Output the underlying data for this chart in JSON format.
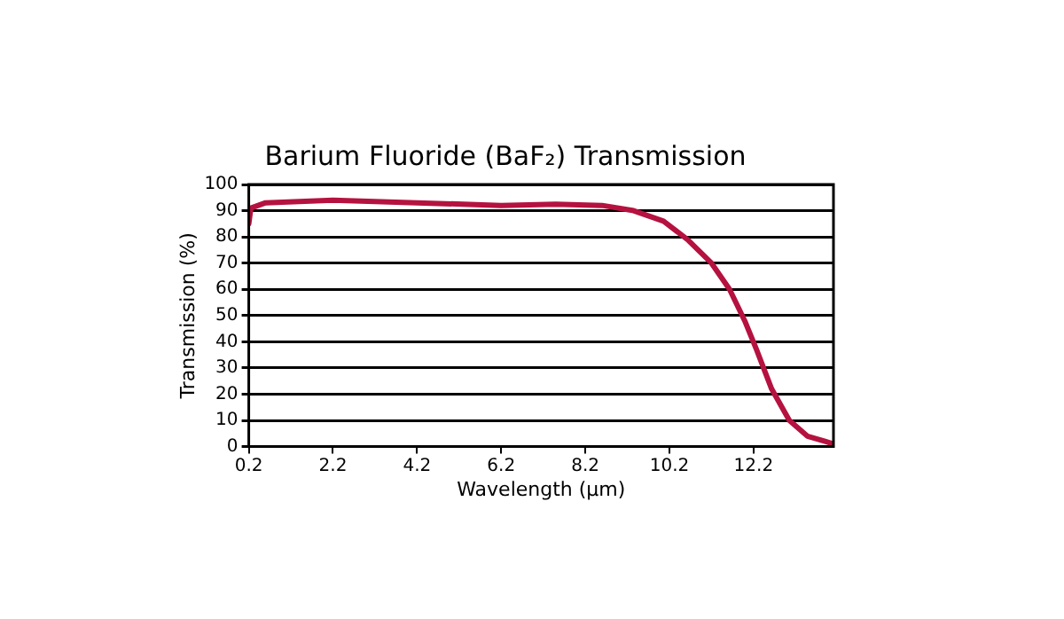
{
  "chart_data": {
    "type": "line",
    "title": "Barium Fluoride (BaF₂) Transmission",
    "xlabel": "Wavelength (µm)",
    "ylabel": "Transmission (%)",
    "series": [
      {
        "color": "#b5123f",
        "x": [
          0.2,
          0.25,
          0.6,
          2.2,
          4.2,
          6.2,
          7.5,
          8.6,
          9.35,
          10.06,
          10.63,
          11.2,
          11.63,
          11.99,
          12.27,
          12.63,
          13.05,
          13.48,
          13.9,
          14.1
        ],
        "values": [
          85,
          91,
          93,
          94,
          93,
          92,
          92.5,
          92,
          90,
          86,
          79,
          70,
          60,
          48,
          37,
          22,
          10,
          4,
          2,
          1
        ]
      }
    ],
    "xlim": [
      0.2,
      14.1
    ],
    "xticks": [
      0.2,
      2.2,
      4.2,
      6.2,
      8.2,
      10.2,
      12.2
    ],
    "ylim": [
      0,
      100
    ],
    "yticks": [
      0,
      10,
      20,
      30,
      40,
      50,
      60,
      70,
      80,
      90,
      100
    ],
    "grid": "y",
    "legend": false,
    "marker": "none",
    "line_style": "solid"
  }
}
